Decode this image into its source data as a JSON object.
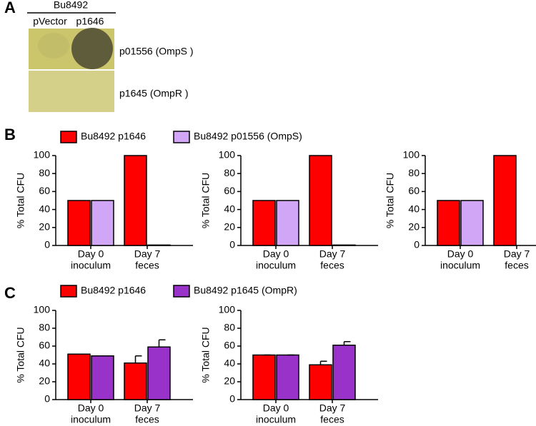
{
  "panel_labels": [
    "A",
    "B",
    "C"
  ],
  "panel_a": {
    "group": "Bu8492",
    "columns": [
      "pVector",
      "p1646"
    ],
    "rows": [
      "p01556 (OmpS )",
      "p1645 (OmpR )"
    ]
  },
  "chart_data": [
    {
      "type": "bar",
      "ylabel": "% Total CFU",
      "categories": [
        [
          "Day 0",
          "inoculum"
        ],
        [
          "Day 7",
          "feces"
        ]
      ],
      "series": [
        {
          "name": "Bu8492 p1646",
          "color": "#ff0000",
          "values": [
            50,
            100
          ]
        },
        {
          "name": "Bu8492 p01556 (OmpS)",
          "color": "#d2a6f7",
          "values": [
            50,
            0.5
          ]
        }
      ],
      "ylim": [
        0,
        100
      ],
      "yticks": [
        0,
        20,
        40,
        60,
        80,
        100
      ]
    },
    {
      "type": "bar",
      "ylabel": "% Total CFU",
      "categories": [
        [
          "Day 0",
          "inoculum"
        ],
        [
          "Day 7",
          "feces"
        ]
      ],
      "series": [
        {
          "color": "#ff0000",
          "values": [
            50,
            100
          ]
        },
        {
          "color": "#d2a6f7",
          "values": [
            50,
            0.5
          ]
        }
      ],
      "ylim": [
        0,
        100
      ],
      "yticks": [
        0,
        20,
        40,
        60,
        80,
        100
      ]
    },
    {
      "type": "bar",
      "ylabel": "% Total CFU",
      "categories": [
        [
          "Day 0",
          "inoculum"
        ],
        [
          "Day 7",
          "feces"
        ]
      ],
      "series": [
        {
          "color": "#ff0000",
          "values": [
            50,
            100
          ]
        },
        {
          "color": "#d2a6f7",
          "values": [
            50,
            0
          ]
        }
      ],
      "ylim": [
        0,
        100
      ],
      "yticks": [
        0,
        20,
        40,
        60,
        80,
        100
      ]
    },
    {
      "type": "bar",
      "ylabel": "% Total CFU",
      "categories": [
        [
          "Day 0",
          "inoculum"
        ],
        [
          "Day 7",
          "feces"
        ]
      ],
      "series": [
        {
          "name": "Bu8492 p1646",
          "color": "#ff0000",
          "values": [
            51,
            41
          ],
          "errors": [
            0,
            8
          ]
        },
        {
          "name": "Bu8492 p1645 (OmpR)",
          "color": "#9932c8",
          "values": [
            49,
            59
          ],
          "errors": [
            0,
            8
          ]
        }
      ],
      "ylim": [
        0,
        100
      ],
      "yticks": [
        0,
        20,
        40,
        60,
        80,
        100
      ]
    },
    {
      "type": "bar",
      "ylabel": "% Total CFU",
      "categories": [
        [
          "Day 0",
          "inoculum"
        ],
        [
          "Day 7",
          "feces"
        ]
      ],
      "series": [
        {
          "color": "#ff0000",
          "values": [
            50,
            39
          ],
          "errors": [
            0,
            4
          ]
        },
        {
          "color": "#9932c8",
          "values": [
            50,
            61
          ],
          "errors": [
            0,
            4
          ]
        }
      ],
      "ylim": [
        0,
        100
      ],
      "yticks": [
        0,
        20,
        40,
        60,
        80,
        100
      ]
    }
  ]
}
